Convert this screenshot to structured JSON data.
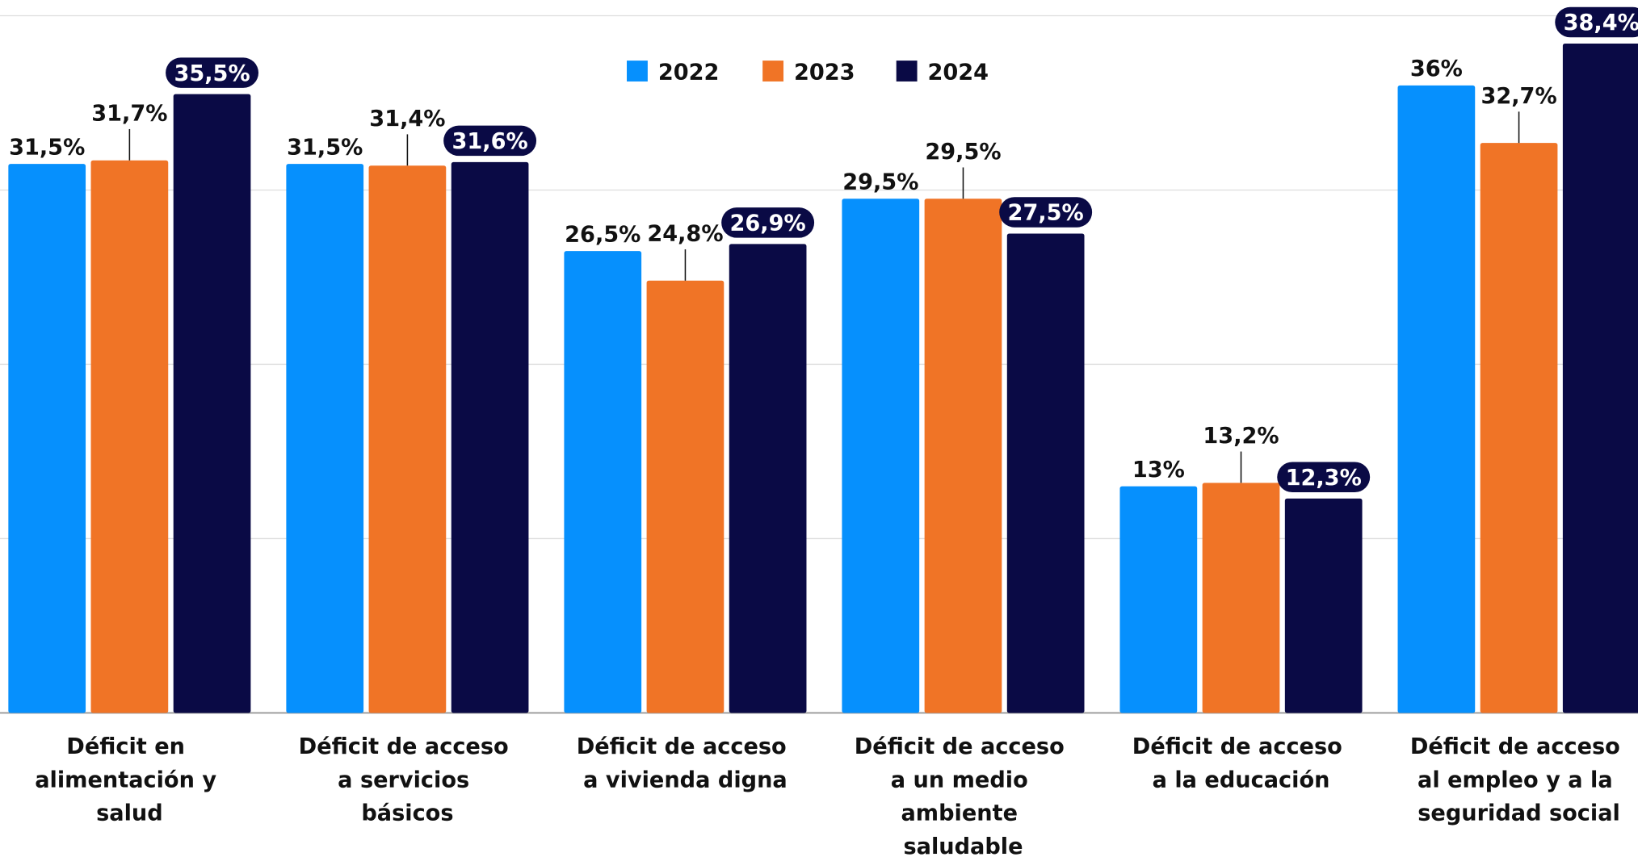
{
  "chart_data": {
    "type": "bar",
    "categories": [
      "Déficit en alimentación y salud",
      "Déficit de acceso a servicios básicos",
      "Déficit de acceso a vivienda digna",
      "Déficit de acceso a un medio ambiente saludable",
      "Déficit de acceso a la educación",
      "Déficit de acceso al empleo y a la seguridad social"
    ],
    "series": [
      {
        "name": "2022",
        "color": "#0690fd",
        "values": [
          31.5,
          31.5,
          26.5,
          29.5,
          13,
          36
        ],
        "value_labels": [
          "31,5%",
          "31,5%",
          "26,5%",
          "29,5%",
          "13%",
          "36%"
        ]
      },
      {
        "name": "2023",
        "color": "#f07426",
        "values": [
          31.7,
          31.4,
          24.8,
          29.5,
          13.2,
          32.7
        ],
        "value_labels": [
          "31,7%",
          "31,4%",
          "24,8%",
          "29,5%",
          "13,2%",
          "32,7%"
        ]
      },
      {
        "name": "2024",
        "color": "#0a0a45",
        "values": [
          35.5,
          31.6,
          26.9,
          27.5,
          12.3,
          38.4
        ],
        "value_labels": [
          "35,5%",
          "31,6%",
          "26,9%",
          "27,5%",
          "12,3%",
          "38,4%"
        ]
      }
    ],
    "ylim": [
      0,
      40
    ],
    "yticks": [
      0,
      10,
      20,
      30,
      40
    ],
    "grid": true
  }
}
